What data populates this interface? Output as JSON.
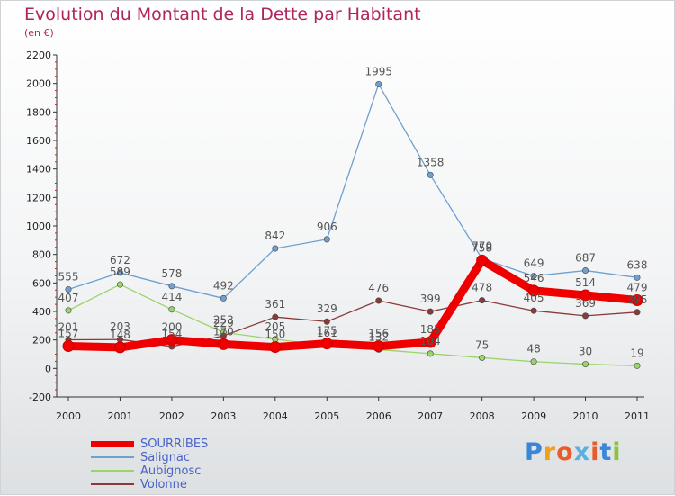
{
  "header": {
    "title": "Evolution du Montant de la Dette par Habitant",
    "unit": "(en €)"
  },
  "chart_data": {
    "type": "line",
    "categories": [
      "2000",
      "2001",
      "2002",
      "2003",
      "2004",
      "2005",
      "2006",
      "2007",
      "2008",
      "2009",
      "2010",
      "2011"
    ],
    "ylim": [
      -200,
      2200
    ],
    "yticks": [
      -200,
      0,
      200,
      400,
      600,
      800,
      1000,
      1200,
      1400,
      1600,
      1800,
      2000,
      2200
    ],
    "grid": false,
    "legend_position": "bottom-left",
    "series": [
      {
        "name": "SOURRIBES",
        "color": "#ee0000",
        "values": [
          157,
          148,
          200,
          170,
          150,
          175,
          156,
          185,
          758,
          546,
          514,
          479
        ]
      },
      {
        "name": "Salignac",
        "color": "#6fa0cf",
        "values": [
          555,
          672,
          578,
          492,
          842,
          906,
          1995,
          1358,
          770,
          649,
          687,
          638
        ]
      },
      {
        "name": "Aubignosc",
        "color": "#9ad46a",
        "values": [
          407,
          589,
          414,
          253,
          205,
          161,
          132,
          104,
          75,
          48,
          30,
          19
        ]
      },
      {
        "name": "Volonne",
        "color": "#8a3a3a",
        "values": [
          201,
          203,
          154,
          229,
          361,
          329,
          476,
          399,
          478,
          405,
          369,
          395
        ]
      }
    ]
  },
  "brand": {
    "logo_text": "Proxiti"
  }
}
